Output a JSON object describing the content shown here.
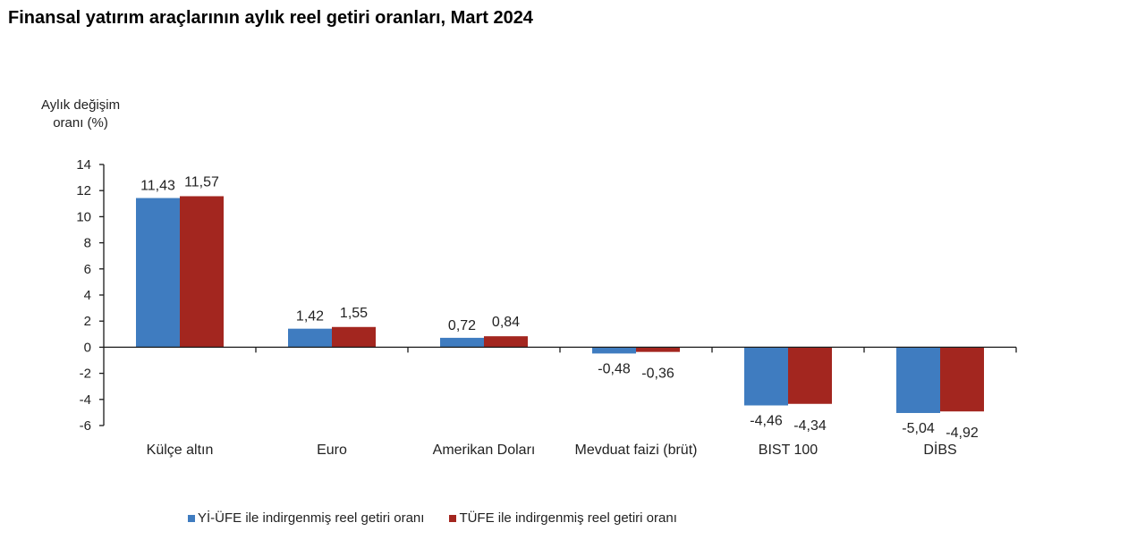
{
  "title": "Finansal yatırım araçlarının aylık reel getiri oranları, Mart 2024",
  "colors": {
    "series1": "#3f7cc0",
    "series2": "#a3261f",
    "axis": "#1a1a1a"
  },
  "chart_data": {
    "type": "bar",
    "title": "Finansal yatırım araçlarının aylık reel getiri oranları, Mart 2024",
    "xlabel": "",
    "ylabel": "Aylık değişim oranı (%)",
    "ylim": [
      -6,
      14
    ],
    "yticks": [
      14,
      12,
      10,
      8,
      6,
      4,
      2,
      0,
      -2,
      -4,
      -6
    ],
    "grid": false,
    "legend_position": "bottom",
    "categories": [
      "Külçe altın",
      "Euro",
      "Amerikan Doları",
      "Mevduat faizi (brüt)",
      "BIST 100",
      "DİBS"
    ],
    "series": [
      {
        "name": "Yİ-ÜFE ile indirgenmiş reel getiri oranı",
        "color": "#3f7cc0",
        "values": [
          11.43,
          1.42,
          0.72,
          -0.48,
          -4.46,
          -5.04
        ],
        "labels": [
          "11,43",
          "1,42",
          "0,72",
          "-0,48",
          "-4,46",
          "-5,04"
        ]
      },
      {
        "name": "TÜFE ile indirgenmiş reel getiri oranı",
        "color": "#a3261f",
        "values": [
          11.57,
          1.55,
          0.84,
          -0.36,
          -4.34,
          -4.92
        ],
        "labels": [
          "11,57",
          "1,55",
          "0,84",
          "-0,36",
          "-4,34",
          "-4,92"
        ]
      }
    ]
  },
  "ylabel": {
    "line1": "Aylık değişim",
    "line2": "oranı (%)"
  },
  "legend": {
    "items": [
      {
        "label": "Yİ-ÜFE ile indirgenmiş reel getiri oranı",
        "color": "#3f7cc0"
      },
      {
        "label": "TÜFE ile indirgenmiş reel getiri oranı",
        "color": "#a3261f"
      }
    ]
  }
}
